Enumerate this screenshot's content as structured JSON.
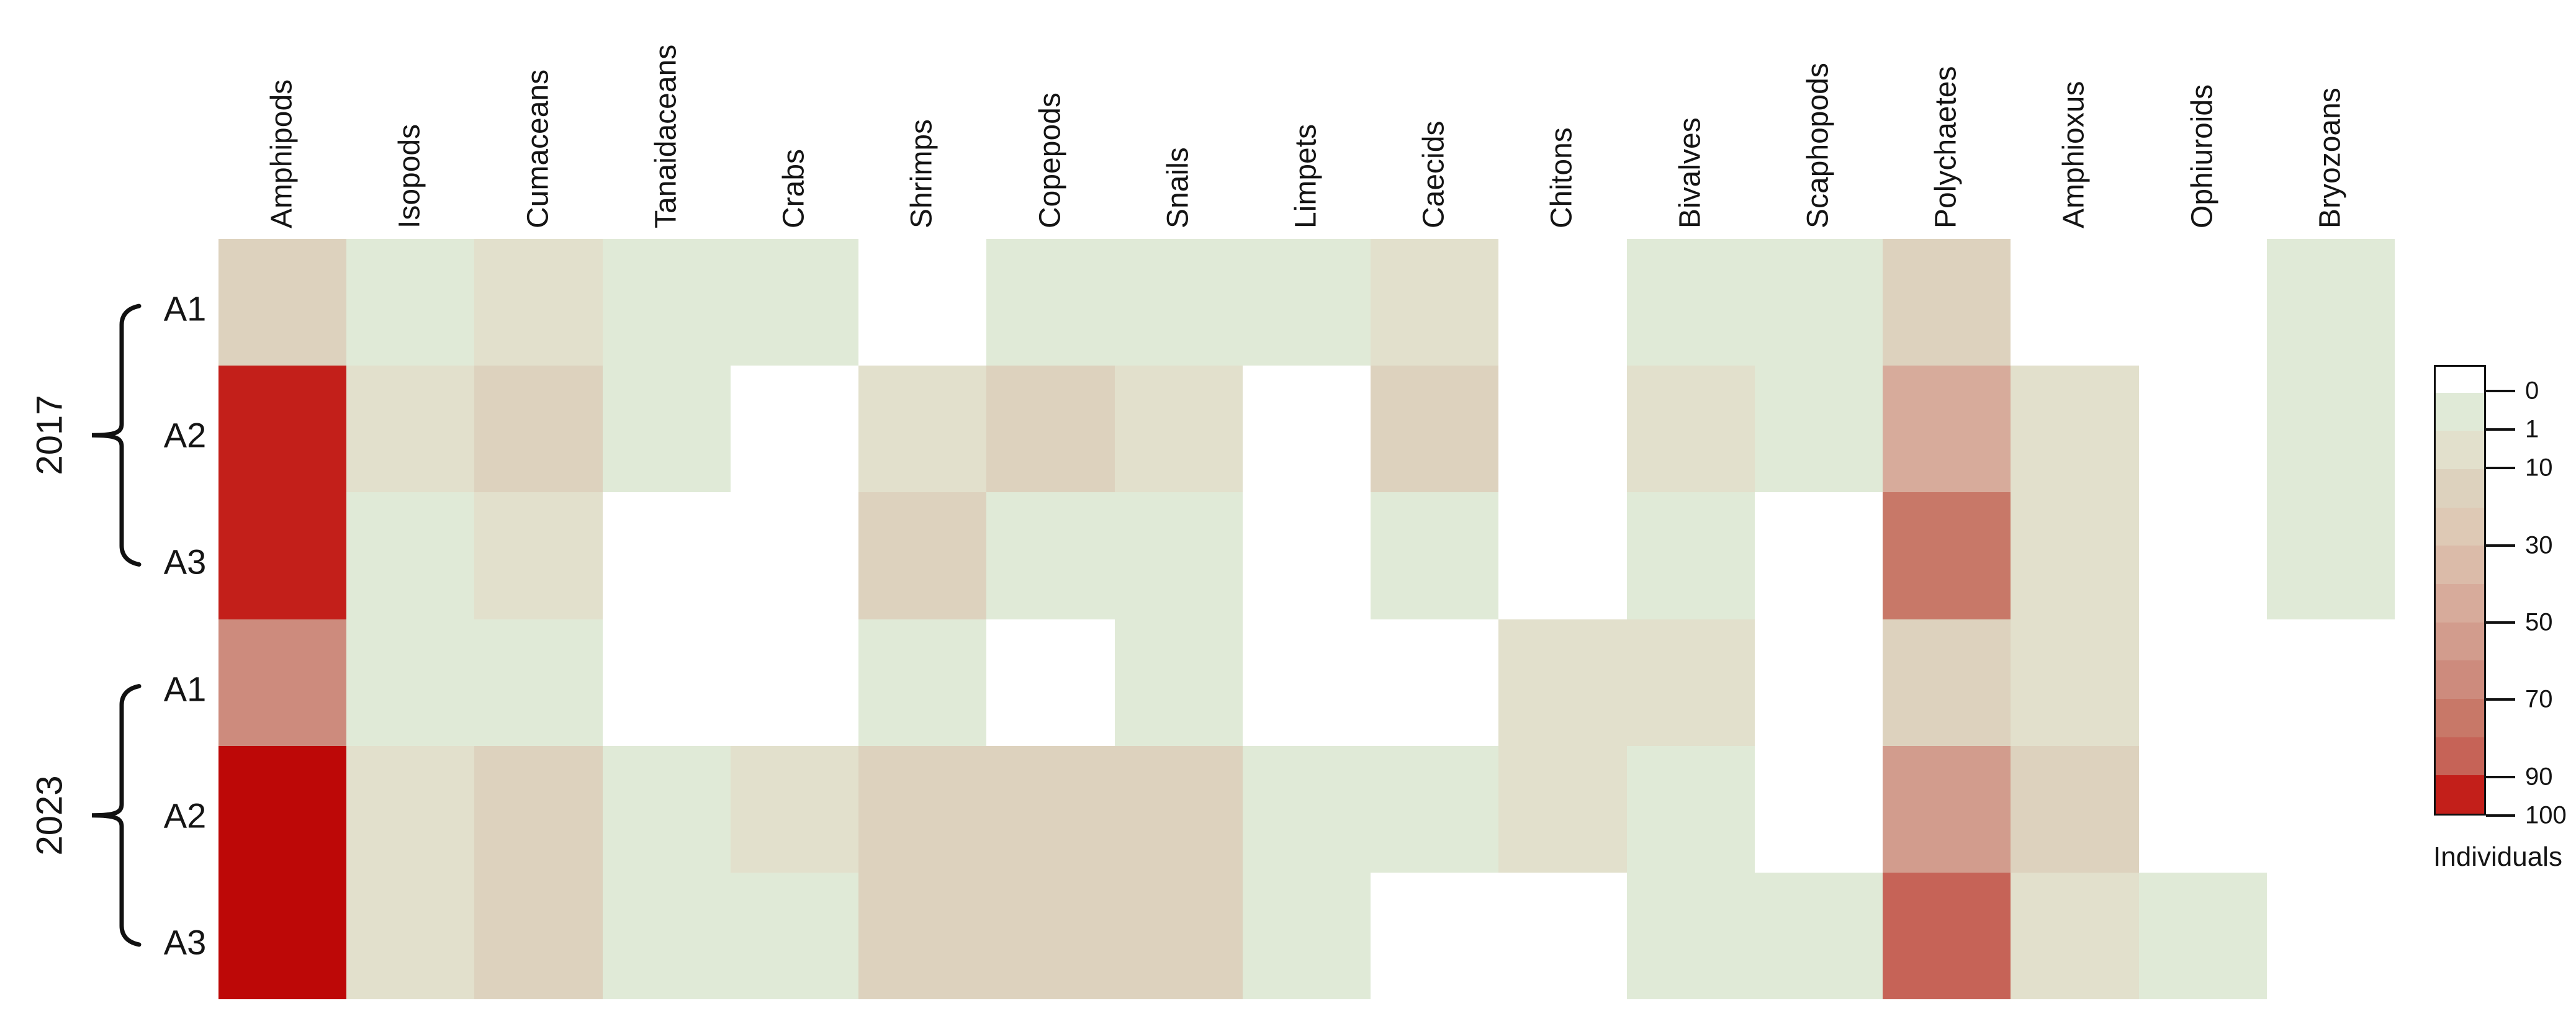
{
  "chart_data": {
    "type": "heatmap",
    "title": "",
    "legend_title": "Individuals",
    "columns": [
      "Amphipods",
      "Isopods",
      "Cumaceans",
      "Tanaidaceans",
      "Crabs",
      "Shrimps",
      "Copepods",
      "Snails",
      "Limpets",
      "Caecids",
      "Chitons",
      "Bivalves",
      "Scaphopods",
      "Polychaetes",
      "Amphioxus",
      "Ophiuroids",
      "Bryozoans"
    ],
    "row_groups": [
      {
        "year": "2017",
        "stations": [
          "A1",
          "A2",
          "A3"
        ]
      },
      {
        "year": "2023",
        "stations": [
          "A1",
          "A2",
          "A3"
        ]
      }
    ],
    "legend_ticks": [
      "0",
      "1",
      "10",
      "30",
      "50",
      "70",
      "90",
      "100"
    ],
    "palette": [
      "#ffffff",
      "#e0ead7",
      "#e2e0cc",
      "#ddd2be",
      "#dec9b5",
      "#dbbba9",
      "#d7ab9b",
      "#d29c8d",
      "#cd8b7d",
      "#c87868",
      "#c66357",
      "#c31f1a",
      "#bd0807"
    ],
    "palette_value_ranges": [
      "0",
      "0-1",
      "1-10",
      "10-20",
      "20-30",
      "30-40",
      "40-50",
      "50-60",
      "60-70",
      "70-80",
      "80-90",
      "90-100",
      "100"
    ],
    "levels": [
      [
        3,
        1,
        2,
        1,
        1,
        0,
        1,
        1,
        1,
        2,
        0,
        1,
        1,
        3,
        0,
        0,
        1
      ],
      [
        11,
        2,
        3,
        1,
        0,
        2,
        3,
        2,
        0,
        3,
        0,
        2,
        1,
        6,
        2,
        0,
        1
      ],
      [
        11,
        1,
        2,
        0,
        0,
        3,
        1,
        1,
        0,
        1,
        0,
        1,
        0,
        9,
        2,
        0,
        1
      ],
      [
        8,
        1,
        1,
        0,
        0,
        1,
        0,
        1,
        0,
        0,
        2,
        2,
        0,
        3,
        2,
        0,
        0
      ],
      [
        12,
        2,
        3,
        1,
        2,
        3,
        3,
        3,
        1,
        1,
        2,
        1,
        0,
        7,
        3,
        0,
        0
      ],
      [
        12,
        2,
        3,
        1,
        1,
        3,
        3,
        3,
        1,
        0,
        0,
        1,
        1,
        10,
        2,
        1,
        0
      ]
    ],
    "values_estimated": [
      [
        15,
        1,
        5,
        1,
        1,
        0,
        1,
        1,
        1,
        5,
        0,
        1,
        1,
        15,
        0,
        0,
        1
      ],
      [
        95,
        5,
        15,
        1,
        0,
        5,
        15,
        5,
        0,
        15,
        0,
        5,
        1,
        45,
        5,
        0,
        1
      ],
      [
        95,
        1,
        5,
        0,
        0,
        15,
        1,
        1,
        0,
        1,
        0,
        1,
        0,
        75,
        5,
        0,
        1
      ],
      [
        65,
        1,
        1,
        0,
        0,
        1,
        0,
        1,
        0,
        0,
        5,
        5,
        0,
        15,
        5,
        0,
        0
      ],
      [
        100,
        5,
        15,
        1,
        5,
        15,
        15,
        15,
        1,
        1,
        5,
        1,
        0,
        55,
        15,
        0,
        0
      ],
      [
        100,
        5,
        15,
        1,
        1,
        15,
        15,
        15,
        1,
        0,
        0,
        1,
        1,
        85,
        5,
        1,
        0
      ]
    ],
    "layout_hints": {
      "legend_position": "right",
      "grid": "off",
      "x_axis_labels": "rotated 90deg, top",
      "colorbar_scale": "non-linear (0,1,10,30,50,70,90,100)"
    }
  }
}
